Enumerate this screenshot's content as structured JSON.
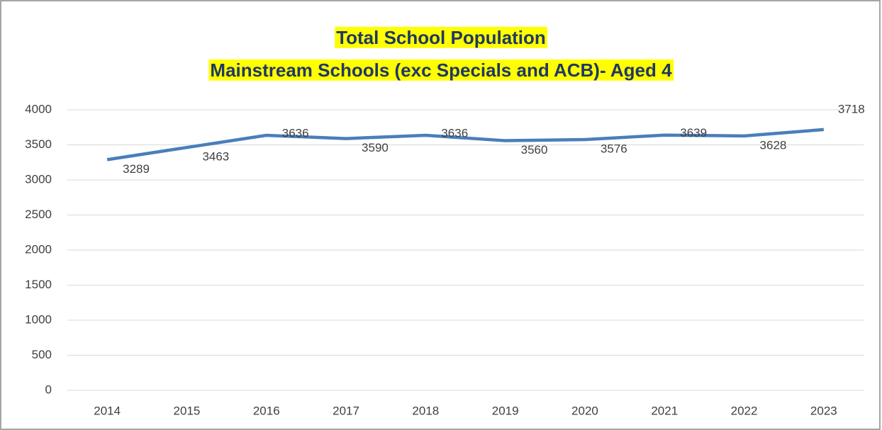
{
  "chart_data": {
    "type": "line",
    "title": "Total School Population",
    "subtitle": "Mainstream Schools (exc Specials and ACB)- Aged 4",
    "categories": [
      "2014",
      "2015",
      "2016",
      "2017",
      "2018",
      "2019",
      "2020",
      "2021",
      "2022",
      "2023"
    ],
    "values": [
      3289,
      3463,
      3636,
      3590,
      3636,
      3560,
      3576,
      3639,
      3628,
      3718
    ],
    "color": "#4a7ebb",
    "ylim": [
      0,
      4000
    ],
    "yticks": [
      0,
      500,
      1000,
      1500,
      2000,
      2500,
      3000,
      3500,
      4000
    ],
    "grid": true
  }
}
